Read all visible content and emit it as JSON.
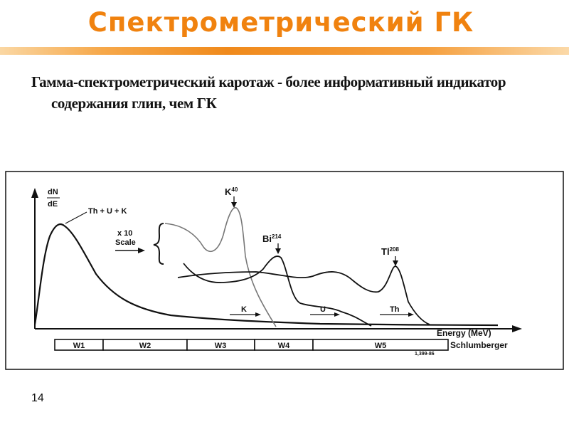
{
  "slide": {
    "title": "Спектрометрический ГК",
    "bullet": "Гамма-спектрометрический каротаж - более информативный индикатор содержания глин, чем ГК",
    "page_number": "14",
    "accent_color": "#f0820f"
  },
  "figure": {
    "y_axis_label_top": "dN",
    "y_axis_label_bottom": "dE",
    "total_curve_label": "Th + U + K",
    "scale_label_line1": "x 10",
    "scale_label_line2": "Scale",
    "peak_k": "K",
    "peak_k_sup": "40",
    "peak_bi": "Bi",
    "peak_bi_sup": "214",
    "peak_tl": "Tl",
    "peak_tl_sup": "208",
    "arrow_k": "K",
    "arrow_u": "U",
    "arrow_th": "Th",
    "x_axis_label": "Energy (MeV)",
    "windows": [
      "W1",
      "W2",
      "W3",
      "W4",
      "W5"
    ],
    "brand": "Schlumberger",
    "figure_code": "1,399-86"
  }
}
